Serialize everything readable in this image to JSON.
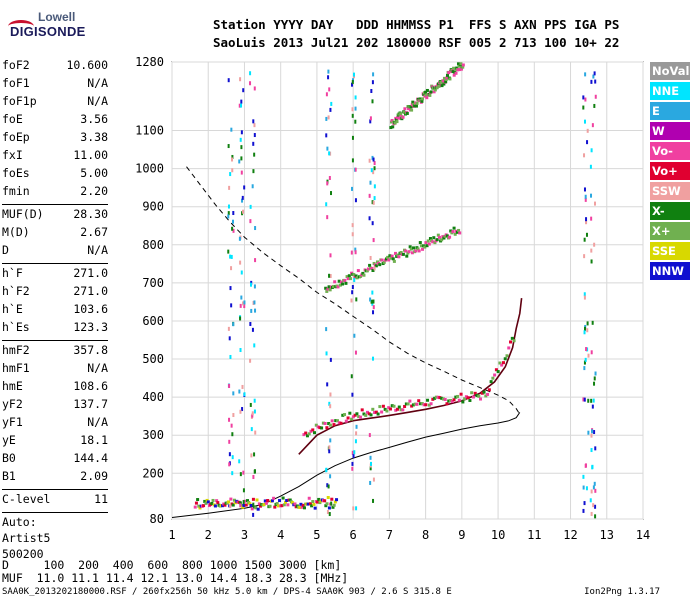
{
  "logo": {
    "line1": "Lowell",
    "line2": "DIGISONDE"
  },
  "header": {
    "row1": "Station YYYY DAY   DDD HHMMSS P1  FFS S AXN PPS IGA PS",
    "row2": "SaoLuis 2013 Jul21 202 180000 RSF 005 2 713 100 10+ 22"
  },
  "params": {
    "group1": [
      {
        "key": "foF2",
        "value": "10.600"
      },
      {
        "key": "foF1",
        "value": "N/A"
      },
      {
        "key": "foF1p",
        "value": "N/A"
      },
      {
        "key": "foE",
        "value": "3.56"
      },
      {
        "key": "foEp",
        "value": "3.38"
      },
      {
        "key": "fxI",
        "value": "11.00"
      },
      {
        "key": "foEs",
        "value": "5.00"
      },
      {
        "key": "fmin",
        "value": "2.20"
      }
    ],
    "group2": [
      {
        "key": "MUF(D)",
        "value": "28.30"
      },
      {
        "key": "M(D)",
        "value": "2.67"
      },
      {
        "key": "D",
        "value": "N/A"
      }
    ],
    "group3": [
      {
        "key": "h`F",
        "value": "271.0"
      },
      {
        "key": "h`F2",
        "value": "271.0"
      },
      {
        "key": "h`E",
        "value": "103.6"
      },
      {
        "key": "h`Es",
        "value": "123.3"
      }
    ],
    "group4": [
      {
        "key": "hmF2",
        "value": "357.8"
      },
      {
        "key": "hmF1",
        "value": "N/A"
      },
      {
        "key": "hmE",
        "value": "108.6"
      },
      {
        "key": "yF2",
        "value": "137.7"
      },
      {
        "key": "yF1",
        "value": "N/A"
      },
      {
        "key": "yE",
        "value": "18.1"
      },
      {
        "key": "B0",
        "value": "144.4"
      },
      {
        "key": "B1",
        "value": "2.09"
      }
    ],
    "group5": [
      {
        "key": "C-level",
        "value": "11"
      }
    ],
    "auto": [
      "Auto:",
      "Artist5",
      "500200"
    ]
  },
  "legend": [
    {
      "label": "NoVal",
      "color": "#999999"
    },
    {
      "label": "NNE",
      "color": "#00e5ff"
    },
    {
      "label": "E",
      "color": "#2aa8e0"
    },
    {
      "label": "W",
      "color": "#b000b0"
    },
    {
      "label": "Vo-",
      "color": "#f040a0"
    },
    {
      "label": "Vo+",
      "color": "#e00030"
    },
    {
      "label": "SSW",
      "color": "#f0a0a0"
    },
    {
      "label": "X-",
      "color": "#108010"
    },
    {
      "label": "X+",
      "color": "#70b050"
    },
    {
      "label": "SSE",
      "color": "#d8d800"
    },
    {
      "label": "NNW",
      "color": "#1010d0"
    }
  ],
  "bottom": {
    "row1": "D     100  200  400  600  800 1000 1500 3000 [km]",
    "row2": "MUF  11.0 11.1 11.4 12.1 13.0 14.4 18.3 28.3 [MHz]"
  },
  "footer": {
    "left": "SAA0K_2013202180000.RSF / 260fx256h 50 kHz 5.0 km / DPS-4 SAA0K 903 / 2.6 S 315.8 E",
    "right": "Ion2Png 1.3.17"
  },
  "chart_data": {
    "type": "scatter",
    "xlabel": "",
    "ylabel": "",
    "xlim": [
      1,
      14
    ],
    "ylim": [
      80,
      1280
    ],
    "xticks": [
      1,
      2,
      3,
      4,
      5,
      6,
      7,
      8,
      9,
      10,
      11,
      12,
      13,
      14
    ],
    "yticks": [
      80,
      200,
      300,
      400,
      500,
      600,
      700,
      800,
      900,
      1000,
      1100,
      1280
    ],
    "grid": true,
    "ytick_labels_shown": [
      80,
      200,
      300,
      400,
      500,
      600,
      700,
      800,
      900,
      1000,
      1100,
      1280
    ],
    "series": [
      {
        "kind": "line",
        "style": "dashed",
        "x": [
          1.4,
          1.8,
          2.2,
          2.6,
          3.0,
          3.5,
          4.0,
          4.5,
          5.0,
          5.5,
          6.0,
          6.5,
          7.0,
          7.5,
          8.0,
          8.5,
          9.0,
          9.5,
          10.0,
          10.3,
          10.5,
          10.6
        ],
        "y": [
          1005,
          955,
          905,
          860,
          820,
          780,
          745,
          712,
          675,
          645,
          612,
          580,
          545,
          515,
          490,
          468,
          445,
          425,
          405,
          390,
          370,
          355
        ]
      },
      {
        "kind": "line",
        "style": "solid",
        "x": [
          1.0,
          2.0,
          3.0,
          3.5,
          4.0,
          4.5,
          5.0,
          5.5,
          6.0,
          6.5,
          7.0,
          7.5,
          8.0,
          8.5,
          9.0,
          9.5,
          10.0,
          10.3,
          10.5,
          10.6
        ],
        "y": [
          84,
          95,
          108,
          118,
          140,
          165,
          195,
          220,
          240,
          255,
          268,
          282,
          295,
          305,
          316,
          325,
          332,
          338,
          346,
          360
        ]
      },
      {
        "kind": "line",
        "style": "solid",
        "color": "#600010",
        "x": [
          4.5,
          5.0,
          5.5,
          6.0,
          6.5,
          7.0,
          7.5,
          8.0,
          8.5,
          9.0,
          9.5,
          9.9,
          10.2,
          10.4,
          10.5,
          10.6,
          10.65
        ],
        "y": [
          250,
          300,
          325,
          338,
          345,
          352,
          360,
          368,
          378,
          390,
          410,
          440,
          480,
          530,
          580,
          620,
          660
        ]
      }
    ]
  }
}
